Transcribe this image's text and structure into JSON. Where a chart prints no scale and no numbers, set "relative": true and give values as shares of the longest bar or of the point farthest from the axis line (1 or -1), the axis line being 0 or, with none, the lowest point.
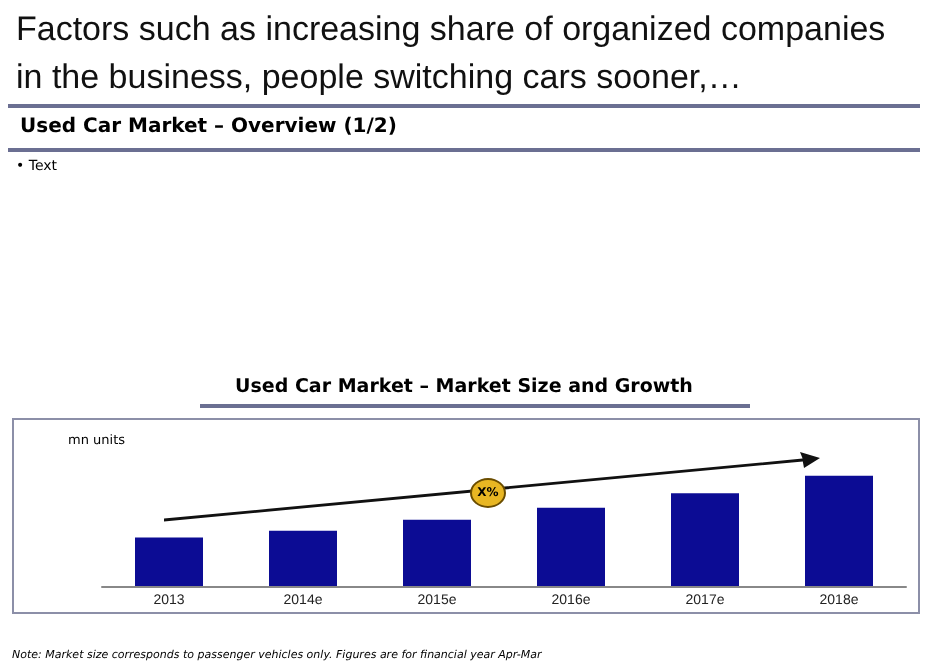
{
  "chart_data": {
    "type": "bar",
    "title": "Used Car Market – Market Size and Growth",
    "ylabel": "mn units",
    "annotations": [
      "Factors such as increasing share of organized companies in the business, people switching cars sooner,…",
      "Used Car Market – Overview (1/2)",
      "• Text",
      "X%",
      "Note: Market size corresponds to passenger vehicles only. Figures are for financial year Apr-Mar"
    ],
    "categories": [
      "2013",
      "2014e",
      "2015e",
      "2016e",
      "2017e",
      "2018e"
    ],
    "values": [
      0.44,
      0.5,
      0.6,
      0.71,
      0.84,
      1
    ],
    "color": "#0c0c94",
    "relative": true
  }
}
